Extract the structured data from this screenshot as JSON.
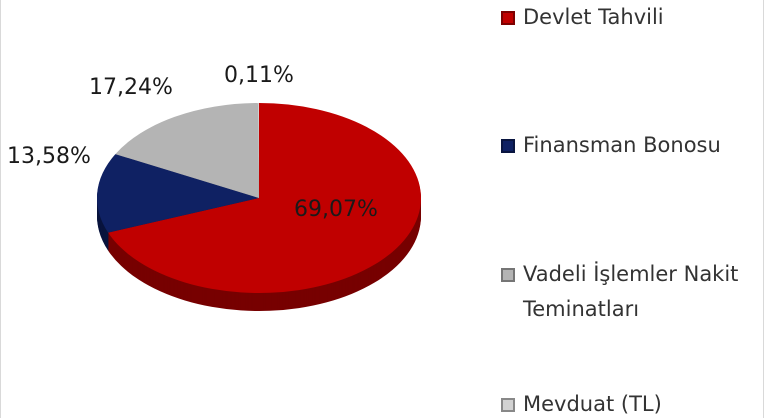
{
  "chart_data": {
    "type": "pie",
    "categories": [
      "Devlet Tahvili",
      "Finansman Bonosu",
      "Vadeli İşlemler Nakit Teminatları",
      "Mevduat (TL)"
    ],
    "values": [
      69.07,
      13.58,
      17.24,
      0.11
    ],
    "value_labels": [
      "69,07%",
      "13,58%",
      "17,24%",
      "0,11%"
    ],
    "colors": [
      "#c00000",
      "#0f2163",
      "#b4b4b4",
      "#d2d2d2"
    ],
    "legend": "right"
  }
}
